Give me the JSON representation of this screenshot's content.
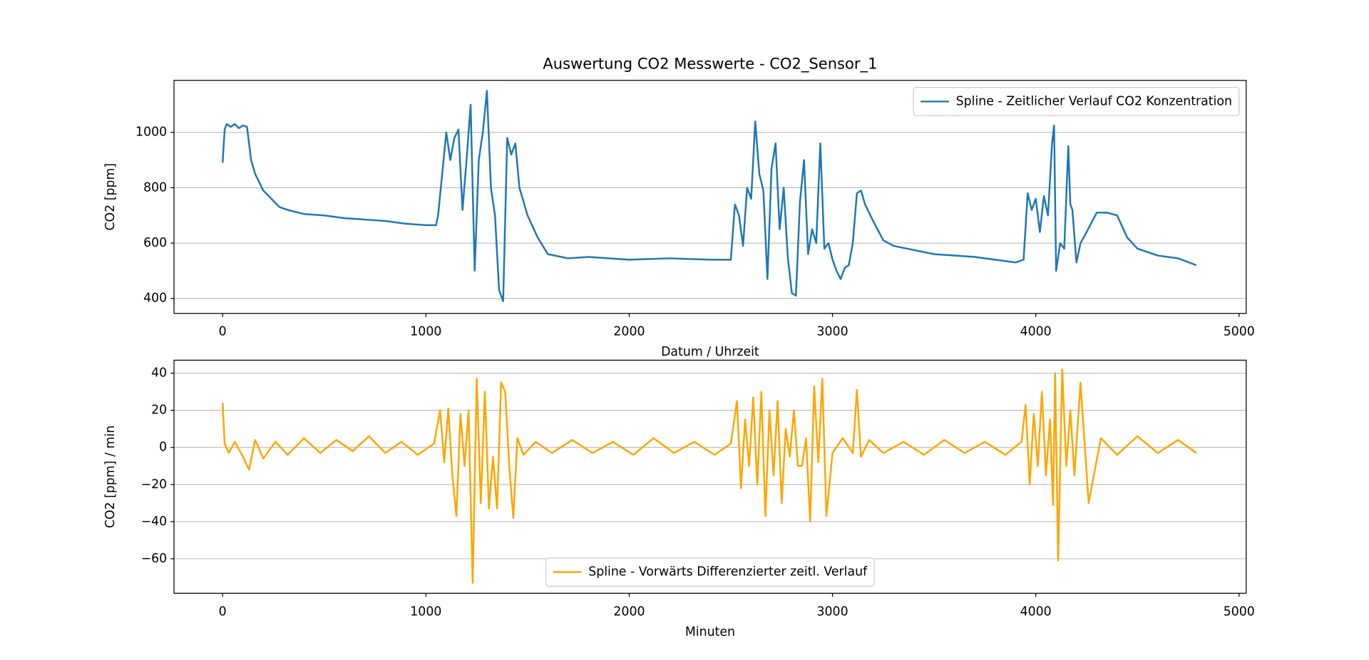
{
  "chart_data": [
    {
      "type": "line",
      "title": "Auswertung CO2 Messwerte - CO2_Sensor_1",
      "x_label": "Datum / Uhrzeit",
      "y_label": "CO2 [ppm]",
      "xlim": [
        -239,
        5035
      ],
      "ylim": [
        346,
        1188
      ],
      "xticks": [
        0,
        1000,
        2000,
        3000,
        4000,
        5000
      ],
      "yticks": [
        400,
        600,
        800,
        1000
      ],
      "grid": "y",
      "legend": "upper right",
      "series": [
        {
          "name": "Spline - Zeitlicher Verlauf CO2 Konzentration",
          "color": "#1f77b4",
          "x": [
            0,
            10,
            20,
            40,
            60,
            80,
            100,
            120,
            140,
            160,
            180,
            200,
            240,
            280,
            320,
            400,
            500,
            600,
            700,
            800,
            900,
            1000,
            1050,
            1060,
            1080,
            1100,
            1120,
            1140,
            1160,
            1180,
            1200,
            1220,
            1240,
            1260,
            1280,
            1300,
            1320,
            1340,
            1360,
            1380,
            1400,
            1420,
            1440,
            1460,
            1500,
            1550,
            1600,
            1700,
            1800,
            2000,
            2200,
            2400,
            2500,
            2520,
            2540,
            2560,
            2580,
            2600,
            2620,
            2640,
            2660,
            2680,
            2700,
            2720,
            2740,
            2760,
            2780,
            2800,
            2820,
            2840,
            2860,
            2880,
            2900,
            2920,
            2940,
            2960,
            2980,
            3000,
            3020,
            3040,
            3060,
            3080,
            3100,
            3120,
            3140,
            3160,
            3200,
            3250,
            3300,
            3400,
            3500,
            3600,
            3700,
            3800,
            3900,
            3940,
            3960,
            3980,
            4000,
            4020,
            4040,
            4060,
            4080,
            4090,
            4100,
            4120,
            4140,
            4160,
            4170,
            4180,
            4200,
            4220,
            4250,
            4300,
            4350,
            4400,
            4450,
            4500,
            4600,
            4700,
            4790
          ],
          "values": [
            890,
            1010,
            1030,
            1020,
            1030,
            1015,
            1025,
            1020,
            900,
            850,
            820,
            790,
            760,
            730,
            720,
            705,
            700,
            690,
            685,
            680,
            670,
            665,
            665,
            700,
            850,
            1000,
            900,
            980,
            1010,
            720,
            900,
            1100,
            500,
            900,
            1000,
            1150,
            800,
            700,
            430,
            390,
            980,
            920,
            960,
            800,
            700,
            620,
            560,
            545,
            550,
            540,
            545,
            540,
            540,
            740,
            700,
            590,
            800,
            760,
            1040,
            850,
            790,
            470,
            870,
            960,
            650,
            800,
            550,
            420,
            410,
            750,
            900,
            560,
            650,
            600,
            960,
            580,
            600,
            540,
            500,
            470,
            510,
            520,
            600,
            780,
            790,
            740,
            680,
            610,
            590,
            575,
            560,
            555,
            550,
            540,
            530,
            540,
            780,
            720,
            760,
            640,
            770,
            700,
            960,
            1025,
            500,
            600,
            580,
            950,
            740,
            720,
            530,
            600,
            640,
            710,
            710,
            700,
            620,
            580,
            555,
            545,
            520
          ]
        }
      ]
    },
    {
      "type": "line",
      "x_label": "Minuten",
      "y_label": "CO2 [ppm] / min",
      "xlim": [
        -239,
        5035
      ],
      "ylim": [
        -78.6,
        47
      ],
      "xticks": [
        0,
        1000,
        2000,
        3000,
        4000,
        5000
      ],
      "yticks": [
        {
          "value": -60,
          "label": "−60"
        },
        {
          "value": -40,
          "label": "−40"
        },
        {
          "value": -20,
          "label": "−20"
        },
        0,
        20,
        40
      ],
      "grid": "y",
      "legend": "lower center",
      "series": [
        {
          "name": "Spline - Vorwärts Differenzierter zeitl. Verlauf",
          "color": "#ffa500",
          "x": [
            0,
            10,
            30,
            60,
            100,
            130,
            160,
            200,
            260,
            320,
            400,
            480,
            560,
            640,
            720,
            800,
            880,
            960,
            1040,
            1070,
            1090,
            1110,
            1130,
            1150,
            1170,
            1190,
            1210,
            1230,
            1250,
            1270,
            1290,
            1310,
            1330,
            1350,
            1370,
            1390,
            1410,
            1430,
            1450,
            1480,
            1540,
            1620,
            1720,
            1820,
            1920,
            2020,
            2120,
            2220,
            2320,
            2420,
            2500,
            2530,
            2550,
            2570,
            2590,
            2610,
            2630,
            2650,
            2670,
            2690,
            2710,
            2730,
            2750,
            2770,
            2790,
            2810,
            2830,
            2850,
            2870,
            2890,
            2910,
            2930,
            2950,
            2970,
            3000,
            3050,
            3100,
            3120,
            3140,
            3180,
            3250,
            3350,
            3450,
            3550,
            3650,
            3750,
            3850,
            3930,
            3950,
            3970,
            3990,
            4010,
            4030,
            4050,
            4070,
            4085,
            4095,
            4110,
            4130,
            4150,
            4170,
            4190,
            4220,
            4260,
            4320,
            4400,
            4500,
            4600,
            4700,
            4790
          ],
          "values": [
            24,
            2,
            -3,
            3,
            -5,
            -12,
            4,
            -6,
            3,
            -4,
            5,
            -3,
            4,
            -2,
            6,
            -3,
            3,
            -4,
            2,
            20,
            -8,
            21,
            -15,
            -37,
            18,
            -10,
            20,
            -73,
            37,
            -30,
            30,
            -33,
            -5,
            -33,
            35,
            30,
            -10,
            -38,
            5,
            -4,
            3,
            -3,
            4,
            -3,
            3,
            -4,
            5,
            -3,
            3,
            -4,
            2,
            25,
            -22,
            15,
            -10,
            27,
            -20,
            30,
            -37,
            20,
            -15,
            25,
            -30,
            10,
            -5,
            20,
            -10,
            -10,
            5,
            -40,
            33,
            -8,
            37,
            -37,
            -3,
            5,
            -3,
            31,
            -5,
            4,
            -3,
            3,
            -4,
            4,
            -3,
            3,
            -4,
            3,
            23,
            -20,
            18,
            -10,
            30,
            -15,
            15,
            -31,
            40,
            -61,
            42,
            -10,
            20,
            -15,
            35,
            -30,
            5,
            -4,
            6,
            -3,
            4,
            -3
          ]
        }
      ]
    }
  ]
}
